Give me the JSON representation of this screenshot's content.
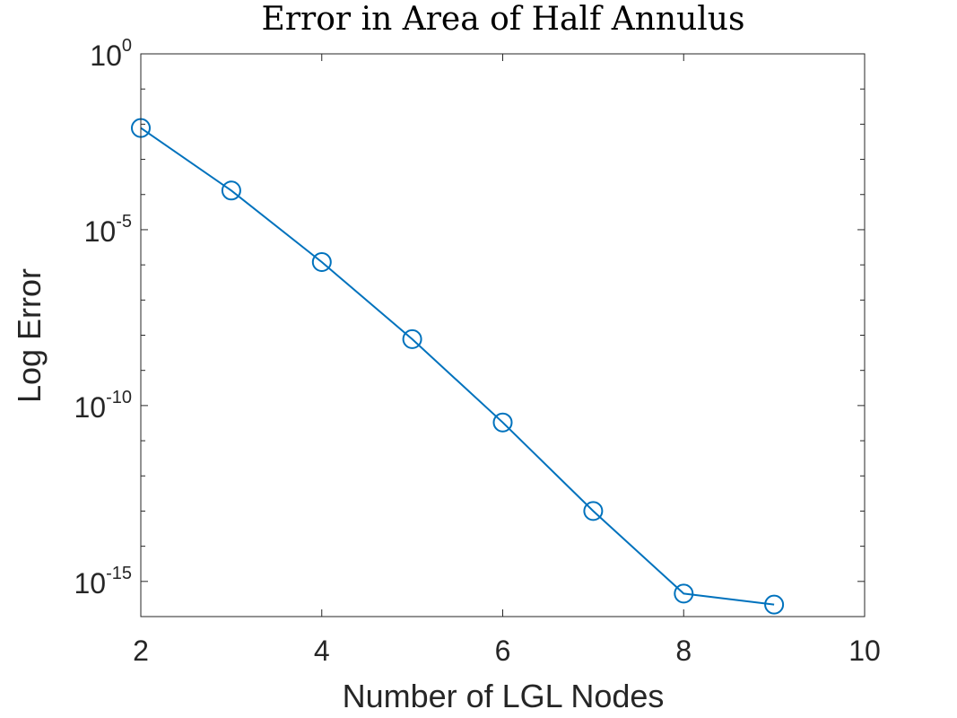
{
  "chart_data": {
    "type": "line",
    "title": "Error in Area of Half Annulus",
    "xlabel": "Number of LGL Nodes",
    "ylabel": "Log Error",
    "xlim": [
      2,
      10
    ],
    "ylim_log10": [
      -16,
      0
    ],
    "y_scale": "log",
    "grid": false,
    "x_ticks": [
      2,
      4,
      6,
      8,
      10
    ],
    "x_tick_labels": [
      "2",
      "4",
      "6",
      "8",
      "10"
    ],
    "y_ticks_log10": [
      0,
      -5,
      -10,
      -15
    ],
    "y_tick_labels": [
      {
        "base": "10",
        "exp": "0"
      },
      {
        "base": "10",
        "exp": "-5"
      },
      {
        "base": "10",
        "exp": "-10"
      },
      {
        "base": "10",
        "exp": "-15"
      }
    ],
    "series": [
      {
        "color": "#0072BD",
        "marker": "circle",
        "x": [
          2,
          3,
          4,
          5,
          6,
          7,
          8,
          9
        ],
        "y": [
          0.0078,
          0.00013,
          1.2e-06,
          7.7e-09,
          3.3e-11,
          1e-13,
          4.5e-16,
          2.2e-16
        ]
      }
    ]
  }
}
